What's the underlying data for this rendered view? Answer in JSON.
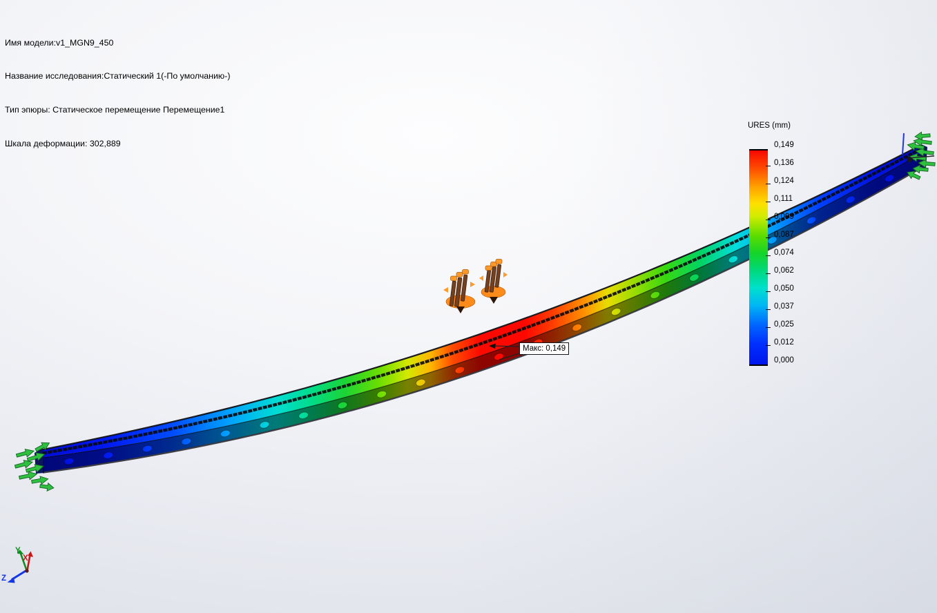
{
  "info_block": {
    "lines": [
      "Имя модели:v1_MGN9_450",
      "Название исследования:Статический 1(-По умолчанию-)",
      "Тип эпюры: Статическое перемещение Перемещение1",
      "Шкала деформации: 302,889"
    ]
  },
  "legend": {
    "title": "URES (mm)",
    "tick_labels": [
      "0,149",
      "0,136",
      "0,124",
      "0,111",
      "0,099",
      "0,087",
      "0,074",
      "0,062",
      "0,050",
      "0,037",
      "0,025",
      "0,012",
      "0,000"
    ],
    "colormap": [
      [
        0.0,
        "#f80400"
      ],
      [
        0.09,
        "#ff5000"
      ],
      [
        0.17,
        "#ffa000"
      ],
      [
        0.25,
        "#ffe000"
      ],
      [
        0.31,
        "#d0ec00"
      ],
      [
        0.4,
        "#5cdc00"
      ],
      [
        0.48,
        "#14d428"
      ],
      [
        0.56,
        "#00d87c"
      ],
      [
        0.64,
        "#00e0cc"
      ],
      [
        0.72,
        "#00b8f4"
      ],
      [
        0.81,
        "#0068ff"
      ],
      [
        0.9,
        "#0030ff"
      ],
      [
        1.0,
        "#0014ec"
      ]
    ]
  },
  "rail": {
    "gradient": [
      [
        0.0,
        "#000cd8"
      ],
      [
        0.07,
        "#0018f0"
      ],
      [
        0.148,
        "#004cff"
      ],
      [
        0.211,
        "#00a0ff"
      ],
      [
        0.266,
        "#00dcd4"
      ],
      [
        0.305,
        "#00dc8c"
      ],
      [
        0.345,
        "#1cd434"
      ],
      [
        0.384,
        "#6cde00"
      ],
      [
        0.416,
        "#d4e800"
      ],
      [
        0.443,
        "#ffb400"
      ],
      [
        0.467,
        "#ff4c00"
      ],
      [
        0.5,
        "#fc0800"
      ],
      [
        0.55,
        "#fc0800"
      ],
      [
        0.581,
        "#ff3c00"
      ],
      [
        0.617,
        "#ff9000"
      ],
      [
        0.644,
        "#e8dc00"
      ],
      [
        0.674,
        "#9cdc00"
      ],
      [
        0.71,
        "#38d810"
      ],
      [
        0.75,
        "#00d464"
      ],
      [
        0.79,
        "#00dcdc"
      ],
      [
        0.835,
        "#0098ff"
      ],
      [
        0.885,
        "#0040ff"
      ],
      [
        0.945,
        "#0014e4"
      ],
      [
        1.0,
        "#000cd8"
      ]
    ],
    "hole_count": 22
  },
  "annotation": {
    "max_label": "Макс: 0,149"
  },
  "triad": {
    "labels": {
      "x": "X",
      "y": "Y",
      "z": "Z"
    },
    "colors": {
      "x": "#cc1414",
      "y": "#0e8f1e",
      "z": "#1535e8"
    }
  },
  "colors": {
    "fixture": "#2fc040",
    "fixture_edge": "#136322",
    "connector_orange": "#ff8c1a",
    "connector_cap": "#ff9a28",
    "connector_brown": "#744120",
    "rail_edge_dark": "#08080e"
  }
}
